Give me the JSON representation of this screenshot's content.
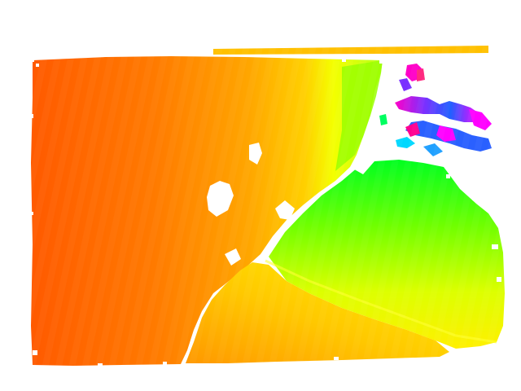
{
  "image": {
    "kind": "colorized depth map",
    "background_color": "#ffffff",
    "colormap": [
      "#ff5a00",
      "#ff8a00",
      "#ffb000",
      "#ffe000",
      "#f0ff00",
      "#b0ff00",
      "#40ff00",
      "#00ff30",
      "#00e0ff",
      "#0050ff",
      "#7020ff",
      "#ff00ff"
    ],
    "regions": [
      {
        "name": "far-wall-plane",
        "dominant_color": "#ff7a00"
      },
      {
        "name": "floor-plane",
        "dominant_color": "#ffd800"
      },
      {
        "name": "right-tilted-plane",
        "dominant_color": "#9cff00"
      },
      {
        "name": "noisy-cluster",
        "dominant_color": "#8a3cff"
      },
      {
        "name": "top-strip",
        "dominant_color": "#ffc000"
      }
    ]
  }
}
